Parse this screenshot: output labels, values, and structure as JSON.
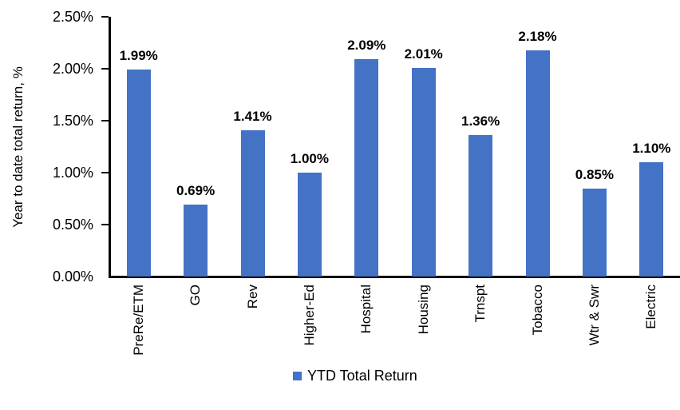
{
  "chart_data": {
    "type": "bar",
    "categories": [
      "PreRe/ETM",
      "GO",
      "Rev",
      "Higher-Ed",
      "Hospital",
      "Housing",
      "Trnspt",
      "Tobacco",
      "Wtr & Swr",
      "Electric"
    ],
    "values": [
      1.99,
      0.69,
      1.41,
      1.0,
      2.09,
      2.01,
      1.36,
      2.18,
      0.85,
      1.1
    ],
    "data_labels": [
      "1.99%",
      "0.69%",
      "1.41%",
      "1.00%",
      "2.09%",
      "2.01%",
      "1.36%",
      "2.18%",
      "0.85%",
      "1.10%"
    ],
    "title": "",
    "xlabel": "",
    "ylabel": "Year to date total return, %",
    "y_ticks": [
      "2.50%",
      "2.00%",
      "1.50%",
      "1.00%",
      "0.50%",
      "0.00%"
    ],
    "ylim": [
      0,
      2.5
    ],
    "grid": false,
    "legend_position": "bottom",
    "legend": [
      {
        "label": "YTD Total Return",
        "color": "#4472C4"
      }
    ],
    "bar_color": "#4472C4",
    "axis_color": "#000000",
    "text_color": "#000000"
  }
}
